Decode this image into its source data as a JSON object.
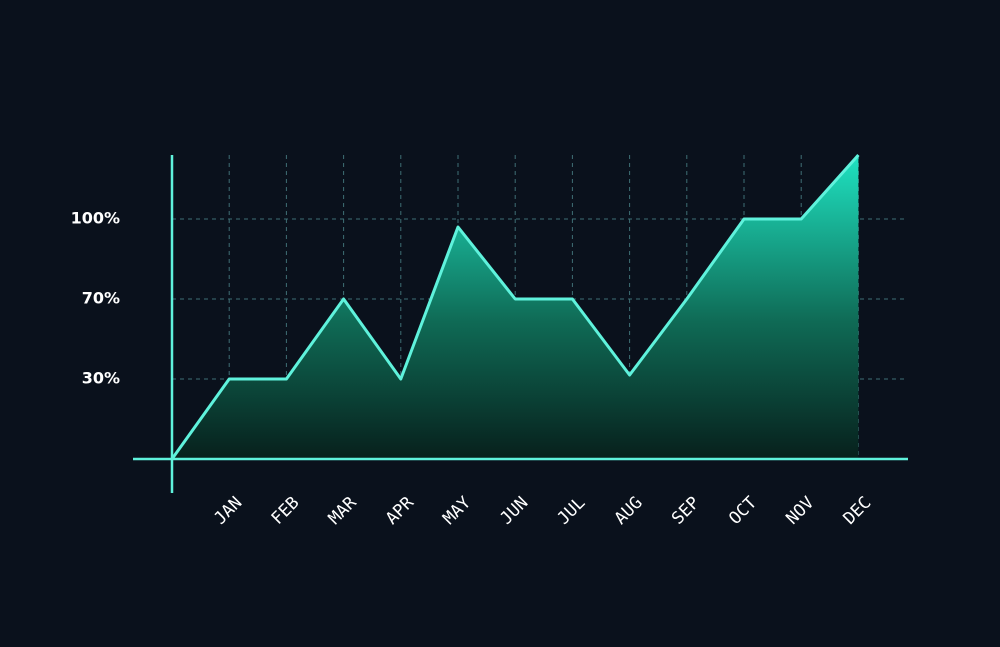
{
  "chart_data": {
    "type": "area",
    "categories": [
      null,
      "JAN",
      "FEB",
      "MAR",
      "APR",
      "MAY",
      "JUN",
      "JUL",
      "AUG",
      "SEP",
      "OCT",
      "NOV",
      "DEC"
    ],
    "values": [
      0,
      30,
      30,
      70,
      30,
      97,
      70,
      70,
      32,
      70,
      100,
      100,
      124
    ],
    "color": "#5ff2dc",
    "ylim": [
      0,
      124
    ],
    "yticks": [
      30,
      {
        "value": 70,
        "label": "70%"
      },
      {
        "value": 100,
        "label": "100%"
      }
    ],
    "ytick_labels": [
      "30%"
    ],
    "grid": true
  }
}
